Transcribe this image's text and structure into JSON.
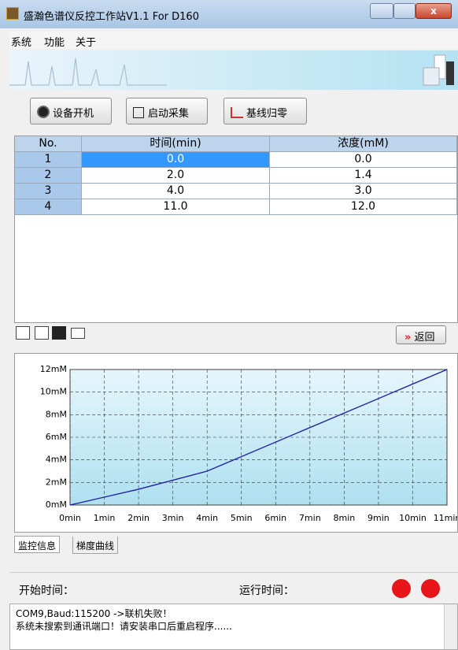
{
  "window": {
    "title": "盛瀚色谱仪反控工作站V1.1 For D160"
  },
  "menu": [
    "系统",
    "功能",
    "关于"
  ],
  "toolbar": [
    "设备开机",
    "启动采集",
    "基线归零"
  ],
  "table": {
    "header": [
      "No.",
      "时间(min)",
      "浓度(mM)"
    ],
    "rows": [
      [
        "1",
        "0.0",
        "0.0"
      ],
      [
        "2",
        "2.0",
        "1.4"
      ],
      [
        "3",
        "4.0",
        "3.0"
      ],
      [
        "4",
        "11.0",
        "12.0"
      ]
    ]
  },
  "back_button": "返回",
  "chart_data": {
    "type": "line",
    "x": [
      0,
      2,
      4,
      11
    ],
    "values": [
      0,
      1.4,
      3,
      12
    ],
    "color": "#1c1ca8",
    "xlim": [
      0,
      11
    ],
    "ylim": [
      0,
      12
    ],
    "xticks": [
      {
        "value": 0,
        "label": "0min"
      },
      {
        "value": 1,
        "label": "1min"
      },
      {
        "value": 2,
        "label": "2min"
      },
      {
        "value": 3,
        "label": "3min"
      },
      {
        "value": 4,
        "label": "4min"
      },
      {
        "value": 5,
        "label": "5min"
      },
      {
        "value": 6,
        "label": "6min"
      },
      {
        "value": 7,
        "label": "7min"
      },
      {
        "value": 8,
        "label": "8min"
      },
      {
        "value": 9,
        "label": "9min"
      },
      {
        "value": 10,
        "label": "10min"
      },
      {
        "value": 11,
        "label": "11min"
      }
    ],
    "yticks": [
      {
        "value": 0,
        "label": "0mM"
      },
      {
        "value": 2,
        "label": "2mM"
      },
      {
        "value": 4,
        "label": "4mM"
      },
      {
        "value": 6,
        "label": "6mM"
      },
      {
        "value": 8,
        "label": "8mM"
      },
      {
        "value": 10,
        "label": "10mM"
      },
      {
        "value": 12,
        "label": "12mM"
      }
    ],
    "grid": true
  },
  "tabs": [
    "监控信息",
    "梯度曲线"
  ],
  "status": {
    "start_label": "开始时间：",
    "run_label": "运行时间："
  },
  "log": [
    "COM9,Baud:115200 ->联机失败！",
    "系统未搜索到通讯端口！请安装串口后重启程序......"
  ]
}
